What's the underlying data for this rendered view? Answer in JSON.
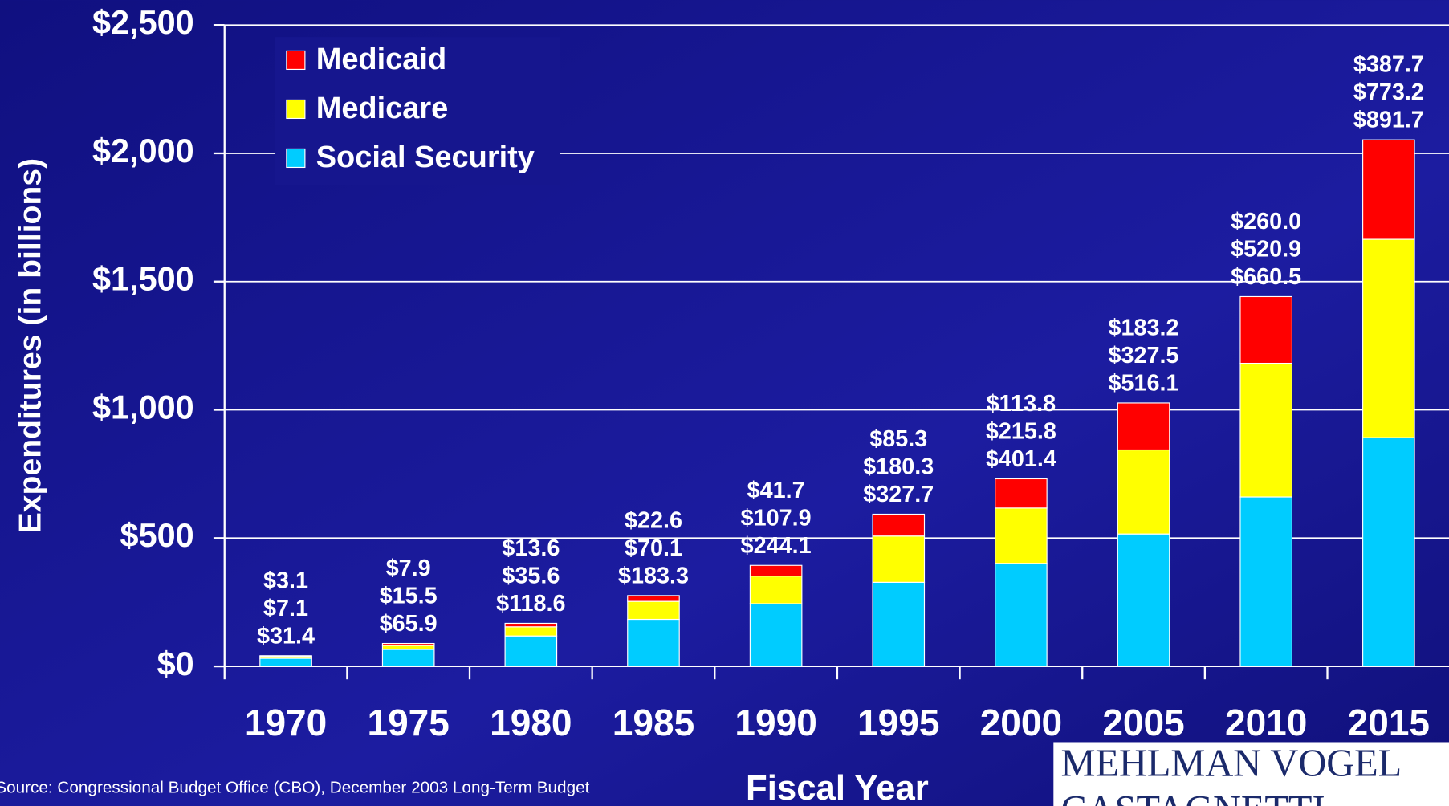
{
  "chart_data": {
    "type": "stacked_bar",
    "y_label": "Expenditures (in billions)",
    "x_label": "Fiscal Year",
    "source": "Source: Congressional Budget Office (CBO), December 2003 Long-Term Budget",
    "logo": [
      "MEHLMAN VOGEL",
      "CASTAGNETTI"
    ],
    "categories": [
      "1970",
      "1975",
      "1980",
      "1985",
      "1990",
      "1995",
      "2000",
      "2005",
      "2010",
      "2015"
    ],
    "series": [
      {
        "name": "Social Security",
        "color": "#00ccff",
        "values": [
          31.4,
          65.9,
          118.6,
          183.3,
          244.1,
          327.7,
          401.4,
          516.1,
          660.5,
          891.7
        ],
        "value_labels": [
          "$31.4",
          "$65.9",
          "$118.6",
          "$183.3",
          "$244.1",
          "$327.7",
          "$401.4",
          "$516.1",
          "$660.5",
          "$891.7"
        ]
      },
      {
        "name": "Medicare",
        "color": "#ffff00",
        "values": [
          7.1,
          15.5,
          35.6,
          70.1,
          107.9,
          180.3,
          215.8,
          327.5,
          520.9,
          773.2
        ],
        "value_labels": [
          "$7.1",
          "$15.5",
          "$35.6",
          "$70.1",
          "$107.9",
          "$180.3",
          "$215.8",
          "$327.5",
          "$520.9",
          "$773.2"
        ]
      },
      {
        "name": "Medicaid",
        "color": "#ff0000",
        "values": [
          3.1,
          7.9,
          13.6,
          22.6,
          41.7,
          85.3,
          113.8,
          183.2,
          260.0,
          387.7
        ],
        "value_labels": [
          "$3.1",
          "$7.9",
          "$13.6",
          "$22.6",
          "$41.7",
          "$85.3",
          "$113.8",
          "$183.2",
          "$260.0",
          "$387.7"
        ]
      }
    ],
    "ylim": [
      0,
      2500
    ],
    "yticks": [
      {
        "value": 0,
        "label": "$0"
      },
      {
        "value": 500,
        "label": "$500"
      },
      {
        "value": 1000,
        "label": "$1,000"
      },
      {
        "value": 1500,
        "label": "$1,500"
      },
      {
        "value": 2000,
        "label": "$2,000"
      },
      {
        "value": 2500,
        "label": "$2,500"
      }
    ],
    "grid": true,
    "legend": "top-left"
  }
}
